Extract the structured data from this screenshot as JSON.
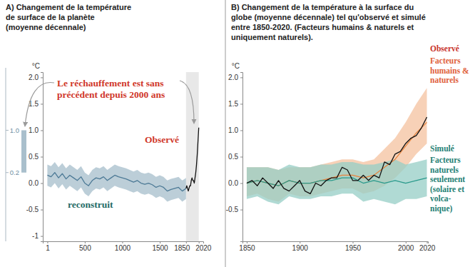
{
  "chart_data": [
    {
      "type": "line",
      "title": "A) Changement de la température\nde surface de la planète\n(moyenne décennale)",
      "ylabel": "°C",
      "xlim": [
        -60,
        2080
      ],
      "ylim": [
        -1.1,
        2.1
      ],
      "xticks": [
        1,
        500,
        1000,
        1500,
        1850,
        2020
      ],
      "yticks": [
        {
          "value": 2,
          "label": "2.0"
        },
        1.5,
        {
          "value": 1,
          "label": "1.0"
        },
        0.5,
        {
          "value": 0,
          "label": "0.0"
        },
        -0.5,
        -1
      ],
      "shaded_range": [
        1850,
        2020
      ],
      "inset": {
        "values": [
          0.2,
          1
        ],
        "ticks": [
          {
            "value": 1,
            "label": "1.0"
          },
          0.2
        ],
        "color": "#a9bfcc"
      },
      "series": [
        {
          "color": "#4d7a96",
          "x": [
            1,
            50,
            100,
            150,
            200,
            250,
            300,
            350,
            400,
            450,
            500,
            550,
            600,
            650,
            700,
            750,
            800,
            850,
            900,
            950,
            1000,
            1050,
            1100,
            1150,
            1200,
            1250,
            1300,
            1350,
            1400,
            1450,
            1500,
            1550,
            1600,
            1650,
            1700,
            1750,
            1800,
            1850
          ],
          "values": [
            0.15,
            0.12,
            0.2,
            0.1,
            0.18,
            0.08,
            0.15,
            0.1,
            0.05,
            0.12,
            0.0,
            -0.05,
            0.05,
            0.1,
            0.08,
            0.12,
            0.05,
            0.1,
            0.15,
            0.12,
            0.1,
            0.08,
            0.05,
            0.02,
            0.05,
            0.0,
            -0.02,
            0.0,
            -0.03,
            -0.08,
            -0.05,
            -0.08,
            -0.15,
            -0.12,
            -0.1,
            -0.08,
            -0.15,
            -0.1
          ],
          "lower": [
            -0.05,
            -0.08,
            0.0,
            -0.1,
            -0.02,
            -0.12,
            -0.05,
            -0.1,
            -0.15,
            -0.08,
            -0.2,
            -0.25,
            -0.15,
            -0.1,
            -0.12,
            -0.08,
            -0.15,
            -0.1,
            -0.05,
            -0.08,
            -0.1,
            -0.12,
            -0.15,
            -0.18,
            -0.15,
            -0.2,
            -0.22,
            -0.2,
            -0.23,
            -0.28,
            -0.25,
            -0.28,
            -0.35,
            -0.32,
            -0.3,
            -0.28,
            -0.35,
            -0.3
          ],
          "upper": [
            0.35,
            0.32,
            0.4,
            0.3,
            0.38,
            0.28,
            0.35,
            0.3,
            0.25,
            0.32,
            0.2,
            0.15,
            0.25,
            0.3,
            0.28,
            0.32,
            0.25,
            0.3,
            0.35,
            0.32,
            0.3,
            0.28,
            0.25,
            0.22,
            0.25,
            0.2,
            0.18,
            0.2,
            0.17,
            0.12,
            0.15,
            0.12,
            0.05,
            0.08,
            0.1,
            0.12,
            0.05,
            0.1
          ]
        },
        {
          "color": "#111111",
          "x": [
            1850,
            1860,
            1870,
            1880,
            1890,
            1900,
            1910,
            1920,
            1930,
            1940,
            1950,
            1960,
            1970,
            1980,
            1990,
            2000,
            2010,
            2020
          ],
          "values": [
            -0.1,
            -0.05,
            -0.1,
            -0.15,
            -0.1,
            -0.05,
            -0.05,
            0.05,
            0.1,
            0.05,
            0.05,
            0.0,
            0.1,
            0.2,
            0.35,
            0.55,
            0.8,
            1.05
          ]
        }
      ],
      "annotations": [
        {
          "text": "Le réchauffement est sans\nprécédent depuis 2000 ans",
          "color": "#d0372a"
        },
        {
          "text": "Observé",
          "color": "#d0372a"
        },
        {
          "text": "reconstruit",
          "color": "#1f6b66"
        }
      ]
    },
    {
      "type": "line",
      "title": "B) Changement de la température à la surface du\nglobe (moyenne décennale) tel qu'observé et simulé\nentre 1850-2020. (Facteurs humains & naturels et\nuniquement naturels).",
      "ylabel": "°C",
      "xlim": [
        1846,
        2021
      ],
      "ylim": [
        -1.1,
        2.1
      ],
      "xticks": [
        1850,
        1900,
        1950,
        2000,
        2020
      ],
      "yticks": [
        {
          "value": 2,
          "label": "2.0"
        },
        1.5,
        {
          "value": 1,
          "label": "1.0"
        },
        0.5,
        {
          "value": 0,
          "label": "0.0"
        },
        -0.5
      ],
      "series": [
        {
          "color": "#e8843f",
          "x": [
            1850,
            1860,
            1870,
            1880,
            1890,
            1900,
            1910,
            1920,
            1930,
            1940,
            1950,
            1960,
            1970,
            1980,
            1990,
            2000,
            2010,
            2020
          ],
          "values": [
            0.0,
            0.05,
            0.0,
            -0.05,
            0.05,
            0.0,
            0.0,
            0.05,
            0.1,
            0.15,
            0.15,
            0.1,
            0.15,
            0.3,
            0.45,
            0.7,
            0.95,
            1.15
          ],
          "lower": [
            -0.25,
            -0.2,
            -0.3,
            -0.35,
            -0.2,
            -0.25,
            -0.25,
            -0.2,
            -0.15,
            -0.1,
            -0.1,
            -0.2,
            -0.15,
            -0.05,
            0.1,
            0.3,
            0.55,
            0.75
          ],
          "upper": [
            0.3,
            0.3,
            0.3,
            0.25,
            0.3,
            0.3,
            0.3,
            0.35,
            0.4,
            0.45,
            0.45,
            0.4,
            0.45,
            0.65,
            0.85,
            1.15,
            1.5,
            1.8
          ]
        },
        {
          "color": "#2a9a8c",
          "x": [
            1850,
            1860,
            1870,
            1880,
            1890,
            1900,
            1910,
            1920,
            1930,
            1940,
            1950,
            1960,
            1970,
            1980,
            1990,
            2000,
            2010,
            2020
          ],
          "values": [
            0.0,
            0.05,
            0.0,
            -0.05,
            0.05,
            0.0,
            0.0,
            0.05,
            0.05,
            0.1,
            0.1,
            0.0,
            0.05,
            0.0,
            0.05,
            0.0,
            0.05,
            0.1
          ],
          "lower": [
            -0.3,
            -0.25,
            -0.35,
            -0.4,
            -0.25,
            -0.3,
            -0.3,
            -0.25,
            -0.25,
            -0.2,
            -0.2,
            -0.35,
            -0.3,
            -0.35,
            -0.4,
            -0.3,
            -0.3,
            -0.25
          ],
          "upper": [
            0.3,
            0.3,
            0.3,
            0.25,
            0.35,
            0.3,
            0.3,
            0.35,
            0.35,
            0.4,
            0.4,
            0.35,
            0.35,
            0.4,
            0.45,
            0.35,
            0.4,
            0.45
          ]
        },
        {
          "color": "#111111",
          "x": [
            1850,
            1855,
            1860,
            1865,
            1870,
            1875,
            1880,
            1885,
            1890,
            1895,
            1900,
            1905,
            1910,
            1915,
            1920,
            1925,
            1930,
            1935,
            1940,
            1945,
            1950,
            1955,
            1960,
            1965,
            1970,
            1975,
            1980,
            1985,
            1990,
            1995,
            2000,
            2005,
            2010,
            2015,
            2020
          ],
          "values": [
            0.0,
            0.05,
            -0.05,
            0.1,
            0.0,
            -0.1,
            0.05,
            -0.1,
            -0.15,
            -0.05,
            0.05,
            -0.15,
            -0.2,
            0.0,
            -0.05,
            0.05,
            0.1,
            0.1,
            0.3,
            0.25,
            0.05,
            0.05,
            0.15,
            0.05,
            0.15,
            0.1,
            0.4,
            0.35,
            0.55,
            0.6,
            0.75,
            0.85,
            0.9,
            1.05,
            1.25
          ]
        }
      ],
      "annotations": [
        {
          "text": "Observé",
          "color": "#c8322a"
        },
        {
          "text": "Facteurs\nhumains &\nnaturels",
          "color": "#e0603a"
        },
        {
          "text": "Simulé",
          "color": "#1f7f74"
        },
        {
          "text": "Facteurs\nnaturels\nseulement\n(solaire et\nvolca-\nnique)",
          "color": "#1f7f74"
        }
      ]
    }
  ]
}
